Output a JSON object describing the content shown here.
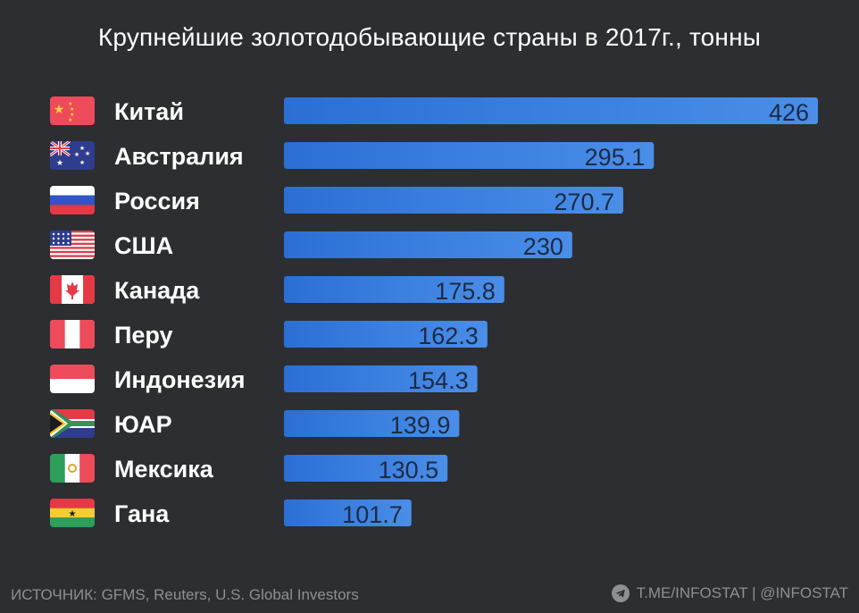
{
  "title": "Крупнейшие золотодобывающие страны в 2017г., тонны",
  "footer": {
    "source": "ИСТОЧНИК: GFMS, Reuters, U.S. Global Investors",
    "channel": "T.ME/INFOSTAT | @INFOSTAT",
    "channel_icon": "telegram-icon"
  },
  "colors": {
    "background": "#2d2e31",
    "bar_left": "#2b6fd6",
    "bar_right": "#4a8ee8",
    "value_text": "#1e2a44"
  },
  "chart_data": {
    "type": "bar",
    "orientation": "horizontal",
    "title": "Крупнейшие золотодобывающие страны в 2017г., тонны",
    "categories": [
      "Китай",
      "Австралия",
      "Россия",
      "США",
      "Канада",
      "Перу",
      "Индонезия",
      "ЮАР",
      "Мексика",
      "Гана"
    ],
    "values": [
      426,
      295.1,
      270.7,
      230,
      175.8,
      162.3,
      154.3,
      139.9,
      130.5,
      101.7
    ],
    "value_labels": [
      "426",
      "295.1",
      "270.7",
      "230",
      "175.8",
      "162.3",
      "154.3",
      "139.9",
      "130.5",
      "101.7"
    ],
    "flags": [
      "china-flag-icon",
      "australia-flag-icon",
      "russia-flag-icon",
      "usa-flag-icon",
      "canada-flag-icon",
      "peru-flag-icon",
      "indonesia-flag-icon",
      "south-africa-flag-icon",
      "mexico-flag-icon",
      "ghana-flag-icon"
    ],
    "xlim": [
      0,
      426
    ],
    "grid": false,
    "legend": "none"
  }
}
